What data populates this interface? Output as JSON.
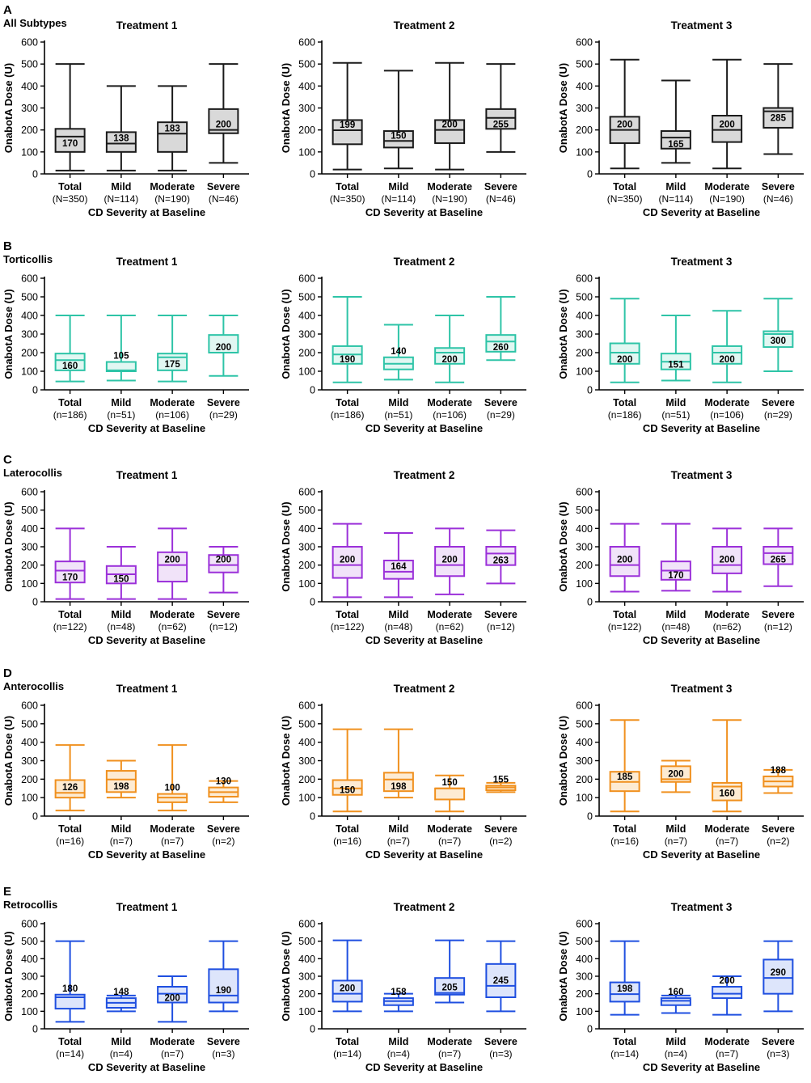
{
  "figure": {
    "panels": [
      {
        "letter": "A",
        "subtitle": "All Subtypes",
        "color": "#1a1a1a",
        "fill": "#d9d9d9",
        "nlabel": "N"
      },
      {
        "letter": "B",
        "subtitle": "Torticollis",
        "color": "#2ec4a7",
        "fill": "#e1f7f2",
        "nlabel": "n"
      },
      {
        "letter": "C",
        "subtitle": "Laterocollis",
        "color": "#9b30d9",
        "fill": "#f1e3f9",
        "nlabel": "n"
      },
      {
        "letter": "D",
        "subtitle": "Anterocollis",
        "color": "#f0901e",
        "fill": "#fdebd3",
        "nlabel": "n"
      },
      {
        "letter": "E",
        "subtitle": "Retrocollis",
        "color": "#1f4fe0",
        "fill": "#dde5fb",
        "nlabel": "n"
      }
    ],
    "treatments": [
      "Treatment 1",
      "Treatment 2",
      "Treatment 3"
    ],
    "categories": [
      "Total",
      "Mild",
      "Moderate",
      "Severe"
    ],
    "ylabel": "OnabotA Dose (U)",
    "xlabel": "CD Severity at Baseline",
    "yticks": [
      0,
      100,
      200,
      300,
      400,
      500,
      600
    ]
  },
  "chart_data": [
    {
      "type": "box",
      "panel": "A",
      "subtype": "All Subtypes",
      "title": "Treatment 1",
      "categories": [
        "Total",
        "Mild",
        "Moderate",
        "Severe"
      ],
      "n": [
        350,
        114,
        190,
        46
      ],
      "boxes": [
        {
          "min": 15,
          "q1": 100,
          "median": 170,
          "q3": 205,
          "max": 500,
          "label": "170"
        },
        {
          "min": 15,
          "q1": 100,
          "median": 138,
          "q3": 190,
          "max": 400,
          "label": "138"
        },
        {
          "min": 15,
          "q1": 100,
          "median": 183,
          "q3": 235,
          "max": 400,
          "label": "183"
        },
        {
          "min": 50,
          "q1": 185,
          "median": 200,
          "q3": 295,
          "max": 500,
          "label": "200"
        }
      ],
      "ylabel": "OnabotA Dose (U)",
      "xlabel": "CD Severity at Baseline",
      "ylim": [
        0,
        600
      ]
    },
    {
      "type": "box",
      "panel": "A",
      "subtype": "All Subtypes",
      "title": "Treatment 2",
      "categories": [
        "Total",
        "Mild",
        "Moderate",
        "Severe"
      ],
      "n": [
        350,
        114,
        190,
        46
      ],
      "boxes": [
        {
          "min": 20,
          "q1": 135,
          "median": 199,
          "q3": 245,
          "max": 505,
          "label": "199"
        },
        {
          "min": 25,
          "q1": 120,
          "median": 150,
          "q3": 195,
          "max": 470,
          "label": "150"
        },
        {
          "min": 20,
          "q1": 140,
          "median": 200,
          "q3": 245,
          "max": 505,
          "label": "200"
        },
        {
          "min": 100,
          "q1": 205,
          "median": 255,
          "q3": 295,
          "max": 500,
          "label": "255"
        }
      ],
      "ylabel": "OnabotA Dose (U)",
      "xlabel": "CD Severity at Baseline",
      "ylim": [
        0,
        600
      ]
    },
    {
      "type": "box",
      "panel": "A",
      "subtype": "All Subtypes",
      "title": "Treatment 3",
      "categories": [
        "Total",
        "Mild",
        "Moderate",
        "Severe"
      ],
      "n": [
        350,
        114,
        190,
        46
      ],
      "boxes": [
        {
          "min": 25,
          "q1": 140,
          "median": 200,
          "q3": 260,
          "max": 520,
          "label": "200"
        },
        {
          "min": 50,
          "q1": 115,
          "median": 165,
          "q3": 195,
          "max": 425,
          "label": "165"
        },
        {
          "min": 25,
          "q1": 145,
          "median": 200,
          "q3": 265,
          "max": 520,
          "label": "200"
        },
        {
          "min": 90,
          "q1": 210,
          "median": 285,
          "q3": 300,
          "max": 500,
          "label": "285"
        }
      ],
      "ylabel": "OnabotA Dose (U)",
      "xlabel": "CD Severity at Baseline",
      "ylim": [
        0,
        600
      ]
    },
    {
      "type": "box",
      "panel": "B",
      "subtype": "Torticollis",
      "title": "Treatment 1",
      "categories": [
        "Total",
        "Mild",
        "Moderate",
        "Severe"
      ],
      "n": [
        186,
        51,
        106,
        29
      ],
      "boxes": [
        {
          "min": 45,
          "q1": 105,
          "median": 160,
          "q3": 195,
          "max": 400,
          "label": "160"
        },
        {
          "min": 50,
          "q1": 100,
          "median": 105,
          "q3": 150,
          "max": 400,
          "label": "105"
        },
        {
          "min": 45,
          "q1": 105,
          "median": 175,
          "q3": 195,
          "max": 400,
          "label": "175"
        },
        {
          "min": 75,
          "q1": 200,
          "median": 200,
          "q3": 295,
          "max": 400,
          "label": "200"
        }
      ],
      "ylabel": "OnabotA Dose (U)",
      "xlabel": "CD Severity at Baseline",
      "ylim": [
        0,
        600
      ]
    },
    {
      "type": "box",
      "panel": "B",
      "subtype": "Torticollis",
      "title": "Treatment 2",
      "categories": [
        "Total",
        "Mild",
        "Moderate",
        "Severe"
      ],
      "n": [
        186,
        51,
        106,
        29
      ],
      "boxes": [
        {
          "min": 40,
          "q1": 140,
          "median": 190,
          "q3": 235,
          "max": 500,
          "label": "190"
        },
        {
          "min": 55,
          "q1": 110,
          "median": 140,
          "q3": 175,
          "max": 350,
          "label": "140"
        },
        {
          "min": 40,
          "q1": 140,
          "median": 200,
          "q3": 225,
          "max": 400,
          "label": "200"
        },
        {
          "min": 160,
          "q1": 205,
          "median": 260,
          "q3": 295,
          "max": 500,
          "label": "260"
        }
      ],
      "ylabel": "OnabotA Dose (U)",
      "xlabel": "CD Severity at Baseline",
      "ylim": [
        0,
        600
      ]
    },
    {
      "type": "box",
      "panel": "B",
      "subtype": "Torticollis",
      "title": "Treatment 3",
      "categories": [
        "Total",
        "Mild",
        "Moderate",
        "Severe"
      ],
      "n": [
        186,
        51,
        106,
        29
      ],
      "boxes": [
        {
          "min": 40,
          "q1": 140,
          "median": 200,
          "q3": 250,
          "max": 490,
          "label": "200"
        },
        {
          "min": 50,
          "q1": 110,
          "median": 151,
          "q3": 195,
          "max": 400,
          "label": "151"
        },
        {
          "min": 40,
          "q1": 140,
          "median": 200,
          "q3": 235,
          "max": 425,
          "label": "200"
        },
        {
          "min": 100,
          "q1": 230,
          "median": 300,
          "q3": 315,
          "max": 490,
          "label": "300"
        }
      ],
      "ylabel": "OnabotA Dose (U)",
      "xlabel": "CD Severity at Baseline",
      "ylim": [
        0,
        600
      ]
    },
    {
      "type": "box",
      "panel": "C",
      "subtype": "Laterocollis",
      "title": "Treatment 1",
      "categories": [
        "Total",
        "Mild",
        "Moderate",
        "Severe"
      ],
      "n": [
        122,
        48,
        62,
        12
      ],
      "boxes": [
        {
          "min": 15,
          "q1": 105,
          "median": 170,
          "q3": 220,
          "max": 400,
          "label": "170"
        },
        {
          "min": 15,
          "q1": 100,
          "median": 150,
          "q3": 195,
          "max": 300,
          "label": "150"
        },
        {
          "min": 15,
          "q1": 110,
          "median": 200,
          "q3": 270,
          "max": 400,
          "label": "200"
        },
        {
          "min": 50,
          "q1": 160,
          "median": 200,
          "q3": 255,
          "max": 300,
          "label": "200"
        }
      ],
      "ylabel": "OnabotA Dose (U)",
      "xlabel": "CD Severity at Baseline",
      "ylim": [
        0,
        600
      ]
    },
    {
      "type": "box",
      "panel": "C",
      "subtype": "Laterocollis",
      "title": "Treatment 2",
      "categories": [
        "Total",
        "Mild",
        "Moderate",
        "Severe"
      ],
      "n": [
        122,
        48,
        62,
        12
      ],
      "boxes": [
        {
          "min": 25,
          "q1": 130,
          "median": 200,
          "q3": 300,
          "max": 425,
          "label": "200"
        },
        {
          "min": 25,
          "q1": 125,
          "median": 164,
          "q3": 225,
          "max": 375,
          "label": "164"
        },
        {
          "min": 40,
          "q1": 140,
          "median": 200,
          "q3": 300,
          "max": 400,
          "label": "200"
        },
        {
          "min": 100,
          "q1": 200,
          "median": 263,
          "q3": 300,
          "max": 390,
          "label": "263"
        }
      ],
      "ylabel": "OnabotA Dose (U)",
      "xlabel": "CD Severity at Baseline",
      "ylim": [
        0,
        600
      ]
    },
    {
      "type": "box",
      "panel": "C",
      "subtype": "Laterocollis",
      "title": "Treatment 3",
      "categories": [
        "Total",
        "Mild",
        "Moderate",
        "Severe"
      ],
      "n": [
        122,
        48,
        62,
        12
      ],
      "boxes": [
        {
          "min": 55,
          "q1": 140,
          "median": 200,
          "q3": 300,
          "max": 425,
          "label": "200"
        },
        {
          "min": 60,
          "q1": 120,
          "median": 170,
          "q3": 220,
          "max": 425,
          "label": "170"
        },
        {
          "min": 55,
          "q1": 155,
          "median": 200,
          "q3": 300,
          "max": 400,
          "label": "200"
        },
        {
          "min": 85,
          "q1": 205,
          "median": 265,
          "q3": 300,
          "max": 400,
          "label": "265"
        }
      ],
      "ylabel": "OnabotA Dose (U)",
      "xlabel": "CD Severity at Baseline",
      "ylim": [
        0,
        600
      ]
    },
    {
      "type": "box",
      "panel": "D",
      "subtype": "Anterocollis",
      "title": "Treatment 1",
      "categories": [
        "Total",
        "Mild",
        "Moderate",
        "Severe"
      ],
      "n": [
        16,
        7,
        7,
        2
      ],
      "boxes": [
        {
          "min": 30,
          "q1": 100,
          "median": 126,
          "q3": 195,
          "max": 385,
          "label": "126"
        },
        {
          "min": 100,
          "q1": 130,
          "median": 198,
          "q3": 245,
          "max": 300,
          "label": "198"
        },
        {
          "min": 30,
          "q1": 75,
          "median": 100,
          "q3": 120,
          "max": 385,
          "label": "100"
        },
        {
          "min": 75,
          "q1": 105,
          "median": 130,
          "q3": 155,
          "max": 190,
          "label": "130"
        }
      ],
      "ylabel": "OnabotA Dose (U)",
      "xlabel": "CD Severity at Baseline",
      "ylim": [
        0,
        600
      ]
    },
    {
      "type": "box",
      "panel": "D",
      "subtype": "Anterocollis",
      "title": "Treatment 2",
      "categories": [
        "Total",
        "Mild",
        "Moderate",
        "Severe"
      ],
      "n": [
        16,
        7,
        7,
        2
      ],
      "boxes": [
        {
          "min": 25,
          "q1": 115,
          "median": 150,
          "q3": 195,
          "max": 470,
          "label": "150"
        },
        {
          "min": 100,
          "q1": 135,
          "median": 198,
          "q3": 235,
          "max": 470,
          "label": "198"
        },
        {
          "min": 25,
          "q1": 90,
          "median": 150,
          "q3": 150,
          "max": 220,
          "label": "150"
        },
        {
          "min": 130,
          "q1": 140,
          "median": 155,
          "q3": 165,
          "max": 180,
          "label": "155"
        }
      ],
      "ylabel": "OnabotA Dose (U)",
      "xlabel": "CD Severity at Baseline",
      "ylim": [
        0,
        600
      ]
    },
    {
      "type": "box",
      "panel": "D",
      "subtype": "Anterocollis",
      "title": "Treatment 3",
      "categories": [
        "Total",
        "Mild",
        "Moderate",
        "Severe"
      ],
      "n": [
        16,
        7,
        7,
        2
      ],
      "boxes": [
        {
          "min": 25,
          "q1": 135,
          "median": 185,
          "q3": 240,
          "max": 520,
          "label": "185"
        },
        {
          "min": 130,
          "q1": 185,
          "median": 200,
          "q3": 270,
          "max": 300,
          "label": "200"
        },
        {
          "min": 25,
          "q1": 85,
          "median": 160,
          "q3": 180,
          "max": 520,
          "label": "160"
        },
        {
          "min": 125,
          "q1": 160,
          "median": 188,
          "q3": 215,
          "max": 250,
          "label": "188"
        }
      ],
      "ylabel": "OnabotA Dose (U)",
      "xlabel": "CD Severity at Baseline",
      "ylim": [
        0,
        600
      ]
    },
    {
      "type": "box",
      "panel": "E",
      "subtype": "Retrocollis",
      "title": "Treatment 1",
      "categories": [
        "Total",
        "Mild",
        "Moderate",
        "Severe"
      ],
      "n": [
        14,
        4,
        7,
        3
      ],
      "boxes": [
        {
          "min": 40,
          "q1": 115,
          "median": 180,
          "q3": 195,
          "max": 500,
          "label": "180"
        },
        {
          "min": 100,
          "q1": 120,
          "median": 148,
          "q3": 175,
          "max": 190,
          "label": "148"
        },
        {
          "min": 40,
          "q1": 150,
          "median": 200,
          "q3": 240,
          "max": 300,
          "label": "200"
        },
        {
          "min": 100,
          "q1": 150,
          "median": 190,
          "q3": 340,
          "max": 500,
          "label": "190"
        }
      ],
      "ylabel": "OnabotA Dose (U)",
      "xlabel": "CD Severity at Baseline",
      "ylim": [
        0,
        600
      ]
    },
    {
      "type": "box",
      "panel": "E",
      "subtype": "Retrocollis",
      "title": "Treatment 2",
      "categories": [
        "Total",
        "Mild",
        "Moderate",
        "Severe"
      ],
      "n": [
        14,
        4,
        7,
        3
      ],
      "boxes": [
        {
          "min": 100,
          "q1": 155,
          "median": 200,
          "q3": 275,
          "max": 505,
          "label": "200"
        },
        {
          "min": 100,
          "q1": 135,
          "median": 158,
          "q3": 175,
          "max": 200,
          "label": "158"
        },
        {
          "min": 150,
          "q1": 195,
          "median": 205,
          "q3": 290,
          "max": 505,
          "label": "205"
        },
        {
          "min": 100,
          "q1": 180,
          "median": 245,
          "q3": 370,
          "max": 500,
          "label": "245"
        }
      ],
      "ylabel": "OnabotA Dose (U)",
      "xlabel": "CD Severity at Baseline",
      "ylim": [
        0,
        600
      ]
    },
    {
      "type": "box",
      "panel": "E",
      "subtype": "Retrocollis",
      "title": "Treatment 3",
      "categories": [
        "Total",
        "Mild",
        "Moderate",
        "Severe"
      ],
      "n": [
        14,
        4,
        7,
        3
      ],
      "boxes": [
        {
          "min": 80,
          "q1": 155,
          "median": 198,
          "q3": 265,
          "max": 500,
          "label": "198"
        },
        {
          "min": 90,
          "q1": 135,
          "median": 160,
          "q3": 175,
          "max": 190,
          "label": "160"
        },
        {
          "min": 80,
          "q1": 175,
          "median": 200,
          "q3": 240,
          "max": 300,
          "label": "200"
        },
        {
          "min": 100,
          "q1": 200,
          "median": 290,
          "q3": 395,
          "max": 500,
          "label": "290"
        }
      ],
      "ylabel": "OnabotA Dose (U)",
      "xlabel": "CD Severity at Baseline",
      "ylim": [
        0,
        600
      ]
    }
  ]
}
